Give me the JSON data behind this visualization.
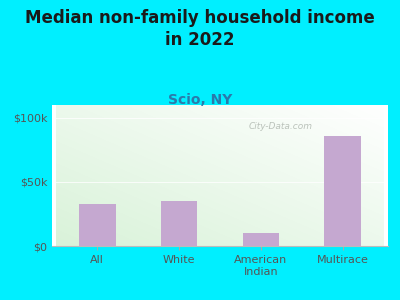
{
  "title": "Median non-family household income\nin 2022",
  "subtitle": "Scio, NY",
  "categories": [
    "All",
    "White",
    "American\nIndian",
    "Multirace"
  ],
  "values": [
    33000,
    35000,
    10000,
    86000
  ],
  "bar_color": "#c5a8d0",
  "background_outer": "#00efff",
  "background_plot_top": "#f5fff5",
  "background_plot_bottom": "#d8f0c8",
  "yticks": [
    0,
    50000,
    100000
  ],
  "ytick_labels": [
    "$0",
    "$50k",
    "$100k"
  ],
  "ymax": 110000,
  "watermark": "City-Data.com",
  "title_fontsize": 12,
  "subtitle_fontsize": 10,
  "subtitle_color": "#2a7aaa",
  "tick_color": "#555555",
  "grid_color": "#e0e8d8"
}
